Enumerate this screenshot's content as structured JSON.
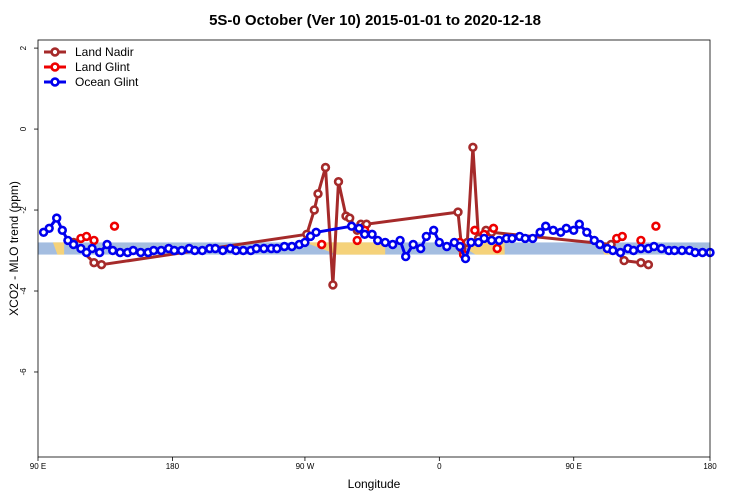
{
  "chart_data": {
    "type": "line",
    "title": "5S-0 October (Ver 10)   2015-01-01 to 2020-12-18",
    "xlabel": "Longitude",
    "ylabel": "XCO2 - MLO trend (ppm)",
    "xlim": [
      90,
      450
    ],
    "ylim": [
      -8.1,
      2.2
    ],
    "x_ticks": [
      {
        "value": 90,
        "label": "90 E"
      },
      {
        "value": 162,
        "label": "180"
      },
      {
        "value": 233,
        "label": "90 W"
      },
      {
        "value": 305,
        "label": "0"
      },
      {
        "value": 377,
        "label": "90 E"
      },
      {
        "value": 450,
        "label": "180"
      }
    ],
    "y_ticks": [
      {
        "value": 2,
        "label": "2"
      },
      {
        "value": 0,
        "label": "0"
      },
      {
        "value": -2,
        "label": "-2"
      },
      {
        "value": -4,
        "label": "-4"
      },
      {
        "value": -6,
        "label": "-6"
      }
    ],
    "legend_position": "top-left",
    "band": {
      "low": -3.1,
      "high": -2.8,
      "color": "#a4bde0"
    },
    "land_patches": [
      {
        "from": 98,
        "to": 104,
        "color": "#f5d27a"
      },
      {
        "from": 233,
        "to": 276,
        "color": "#f5d27a"
      },
      {
        "from": 314,
        "to": 340,
        "color": "#f5d27a"
      },
      {
        "from": 391,
        "to": 397,
        "color": "#f5d27a"
      }
    ],
    "series": [
      {
        "name": "Land Nadir",
        "color": "#a52a2a",
        "connected": true,
        "points": [
          [
            109,
            -2.8
          ],
          [
            120,
            -3.3
          ],
          [
            124,
            -3.35
          ],
          [
            234,
            -2.6
          ],
          [
            238,
            -2.0
          ],
          [
            240,
            -1.6
          ],
          [
            244,
            -0.95
          ],
          [
            248,
            -3.85
          ],
          [
            251,
            -1.3
          ],
          [
            255,
            -2.15
          ],
          [
            257,
            -2.2
          ],
          [
            261,
            -2.5
          ],
          [
            263,
            -2.35
          ],
          [
            265,
            -2.4
          ],
          [
            266,
            -2.35
          ],
          [
            315,
            -2.05
          ],
          [
            317,
            -2.95
          ],
          [
            320,
            -2.8
          ],
          [
            323,
            -0.45
          ],
          [
            326,
            -2.7
          ],
          [
            330,
            -2.5
          ],
          [
            333,
            -2.55
          ],
          [
            397,
            -2.85
          ],
          [
            404,
            -3.25
          ],
          [
            413,
            -3.3
          ],
          [
            417,
            -3.35
          ]
        ]
      },
      {
        "name": "Land Glint",
        "color": "#ee0000",
        "connected": false,
        "points": [
          [
            113,
            -2.7
          ],
          [
            116,
            -2.65
          ],
          [
            120,
            -2.75
          ],
          [
            131,
            -2.4
          ],
          [
            242,
            -2.85
          ],
          [
            261,
            -2.75
          ],
          [
            265,
            -2.5
          ],
          [
            316,
            -2.8
          ],
          [
            318,
            -3.1
          ],
          [
            324,
            -2.5
          ],
          [
            329,
            -2.6
          ],
          [
            334,
            -2.45
          ],
          [
            336,
            -2.95
          ],
          [
            400,
            -2.7
          ],
          [
            403,
            -2.65
          ],
          [
            413,
            -2.75
          ],
          [
            421,
            -2.4
          ]
        ]
      },
      {
        "name": "Ocean Glint",
        "color": "#0000ee",
        "connected": true,
        "points": [
          [
            93,
            -2.55
          ],
          [
            96,
            -2.45
          ],
          [
            100,
            -2.2
          ],
          [
            103,
            -2.5
          ],
          [
            106,
            -2.75
          ],
          [
            109,
            -2.85
          ],
          [
            113,
            -2.95
          ],
          [
            116,
            -3.05
          ],
          [
            119,
            -2.95
          ],
          [
            123,
            -3.05
          ],
          [
            127,
            -2.85
          ],
          [
            130,
            -3.0
          ],
          [
            134,
            -3.05
          ],
          [
            138,
            -3.05
          ],
          [
            141,
            -3.0
          ],
          [
            145,
            -3.05
          ],
          [
            149,
            -3.05
          ],
          [
            152,
            -3.0
          ],
          [
            156,
            -3.0
          ],
          [
            160,
            -2.95
          ],
          [
            163,
            -3.0
          ],
          [
            167,
            -3.0
          ],
          [
            171,
            -2.95
          ],
          [
            174,
            -3.0
          ],
          [
            178,
            -3.0
          ],
          [
            182,
            -2.95
          ],
          [
            185,
            -2.95
          ],
          [
            189,
            -3.0
          ],
          [
            193,
            -2.95
          ],
          [
            196,
            -3.0
          ],
          [
            200,
            -3.0
          ],
          [
            204,
            -3.0
          ],
          [
            207,
            -2.95
          ],
          [
            211,
            -2.95
          ],
          [
            215,
            -2.95
          ],
          [
            218,
            -2.95
          ],
          [
            222,
            -2.9
          ],
          [
            226,
            -2.9
          ],
          [
            230,
            -2.85
          ],
          [
            233,
            -2.8
          ],
          [
            236,
            -2.65
          ],
          [
            239,
            -2.55
          ],
          [
            258,
            -2.4
          ],
          [
            262,
            -2.45
          ],
          [
            265,
            -2.6
          ],
          [
            269,
            -2.6
          ],
          [
            272,
            -2.75
          ],
          [
            276,
            -2.8
          ],
          [
            280,
            -2.85
          ],
          [
            284,
            -2.75
          ],
          [
            287,
            -3.15
          ],
          [
            291,
            -2.85
          ],
          [
            295,
            -2.95
          ],
          [
            298,
            -2.65
          ],
          [
            302,
            -2.5
          ],
          [
            305,
            -2.8
          ],
          [
            309,
            -2.9
          ],
          [
            313,
            -2.8
          ],
          [
            316,
            -2.9
          ],
          [
            319,
            -3.2
          ],
          [
            322,
            -2.8
          ],
          [
            326,
            -2.8
          ],
          [
            329,
            -2.7
          ],
          [
            333,
            -2.75
          ],
          [
            337,
            -2.75
          ],
          [
            341,
            -2.7
          ],
          [
            344,
            -2.7
          ],
          [
            348,
            -2.65
          ],
          [
            351,
            -2.7
          ],
          [
            355,
            -2.7
          ],
          [
            359,
            -2.55
          ],
          [
            362,
            -2.4
          ],
          [
            366,
            -2.5
          ],
          [
            370,
            -2.55
          ],
          [
            373,
            -2.45
          ],
          [
            377,
            -2.5
          ],
          [
            380,
            -2.35
          ],
          [
            384,
            -2.55
          ],
          [
            388,
            -2.75
          ],
          [
            391,
            -2.85
          ],
          [
            395,
            -2.95
          ],
          [
            398,
            -3.0
          ],
          [
            402,
            -3.05
          ],
          [
            406,
            -2.95
          ],
          [
            409,
            -3.0
          ],
          [
            413,
            -2.95
          ],
          [
            417,
            -2.95
          ],
          [
            420,
            -2.9
          ],
          [
            424,
            -2.95
          ],
          [
            428,
            -3.0
          ],
          [
            431,
            -3.0
          ],
          [
            435,
            -3.0
          ],
          [
            439,
            -3.0
          ],
          [
            442,
            -3.05
          ],
          [
            446,
            -3.05
          ],
          [
            450,
            -3.05
          ]
        ]
      }
    ]
  }
}
